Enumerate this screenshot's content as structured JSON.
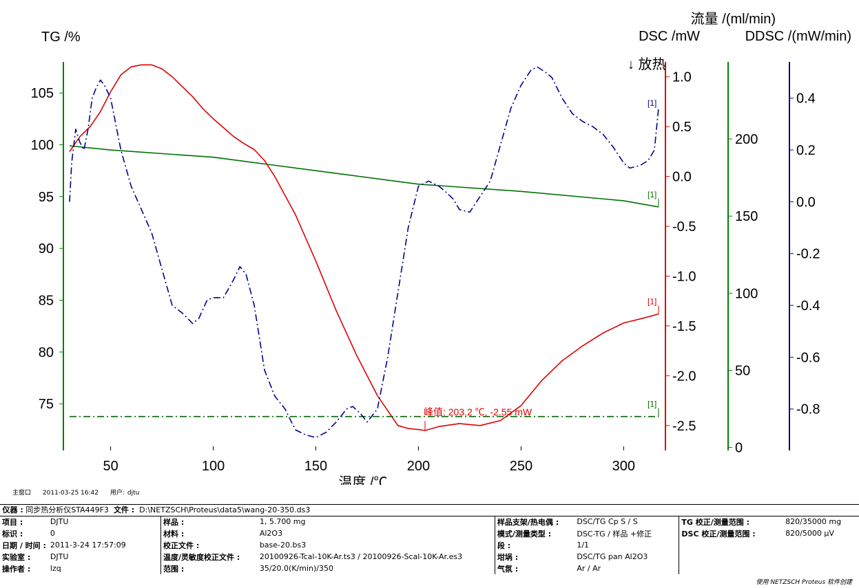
{
  "chart_data": {
    "type": "line",
    "title": "",
    "xlabel": "温度 /℃",
    "xlim": [
      30,
      317
    ],
    "x_ticks": [
      "50",
      "100",
      "150",
      "200",
      "250",
      "300"
    ],
    "axes": [
      {
        "id": "tg",
        "label": "TG /%",
        "color": "#000000",
        "lim": [
          70.5,
          108
        ],
        "ticks": [
          "105",
          "100",
          "95",
          "90",
          "85",
          "80",
          "75"
        ]
      },
      {
        "id": "dsc",
        "label": "DSC /mW",
        "color": "#cc0000",
        "lim": [
          -2.75,
          1.15
        ],
        "ticks": [
          "1.0",
          "0.5",
          "0.0",
          "-0.5",
          "-1.0",
          "-1.5",
          "-2.0",
          "-2.5"
        ],
        "exo_label": "↓ 放热"
      },
      {
        "id": "flow",
        "label": "流量 /(ml/min)",
        "color": "#008000",
        "lim": [
          -2,
          250
        ],
        "ticks": [
          "200",
          "150",
          "100",
          "50",
          "0"
        ]
      },
      {
        "id": "ddsc",
        "label": "DDSC /(mW/min)",
        "color": "#000080",
        "lim": [
          -0.96,
          0.54
        ],
        "ticks": [
          "0.4",
          "0.2",
          "0.0",
          "-0.2",
          "-0.4",
          "-0.6",
          "-0.8"
        ]
      }
    ],
    "series": [
      {
        "axis": "tg",
        "color": "#007000",
        "style": "solid",
        "end_label": "[1]",
        "x": [
          30,
          50,
          100,
          150,
          200,
          250,
          300,
          317
        ],
        "y": [
          99.9,
          99.5,
          98.8,
          97.5,
          96.2,
          95.5,
          94.6,
          94.0
        ]
      },
      {
        "axis": "dsc",
        "color": "#dd0000",
        "style": "solid",
        "end_label": "[1]",
        "x": [
          30,
          31,
          35,
          40,
          45,
          50,
          55,
          60,
          65,
          70,
          75,
          80,
          85,
          90,
          95,
          100,
          105,
          110,
          115,
          120,
          125,
          130,
          140,
          150,
          160,
          170,
          180,
          190,
          195,
          200,
          203.2,
          210,
          220,
          230,
          240,
          250,
          260,
          270,
          280,
          290,
          300,
          310,
          317
        ],
        "y": [
          0.25,
          0.28,
          0.4,
          0.5,
          0.65,
          0.85,
          1.02,
          1.1,
          1.12,
          1.12,
          1.08,
          1.0,
          0.9,
          0.8,
          0.68,
          0.58,
          0.49,
          0.4,
          0.33,
          0.27,
          0.16,
          0.0,
          -0.38,
          -0.85,
          -1.35,
          -1.8,
          -2.2,
          -2.5,
          -2.53,
          -2.54,
          -2.55,
          -2.51,
          -2.48,
          -2.5,
          -2.45,
          -2.3,
          -2.05,
          -1.85,
          -1.7,
          -1.57,
          -1.47,
          -1.42,
          -1.38
        ]
      },
      {
        "axis": "flow",
        "color": "#006400",
        "style": "dashdot",
        "end_label": "[1]",
        "x": [
          30,
          317
        ],
        "y": [
          20,
          20
        ]
      },
      {
        "axis": "ddsc",
        "color": "#00008b",
        "style": "dashdot",
        "x": [
          30,
          31,
          33,
          35,
          37,
          39,
          41,
          43,
          45,
          47,
          50,
          55,
          60,
          70,
          80,
          85,
          90,
          93,
          97,
          100,
          105,
          110,
          113,
          116,
          120,
          125,
          130,
          135,
          140,
          145,
          150,
          155,
          160,
          165,
          168,
          172,
          175,
          180,
          185,
          190,
          195,
          200,
          205,
          210,
          213,
          217,
          220,
          225,
          230,
          235,
          240,
          245,
          250,
          255,
          258,
          262,
          265,
          270,
          275,
          280,
          285,
          290,
          295,
          300,
          303,
          308,
          312,
          315,
          317
        ],
        "y": [
          0.0,
          0.15,
          0.28,
          0.23,
          0.2,
          0.28,
          0.4,
          0.44,
          0.47,
          0.45,
          0.4,
          0.2,
          0.06,
          -0.12,
          -0.4,
          -0.43,
          -0.47,
          -0.45,
          -0.38,
          -0.37,
          -0.37,
          -0.3,
          -0.25,
          -0.28,
          -0.4,
          -0.65,
          -0.75,
          -0.8,
          -0.88,
          -0.9,
          -0.91,
          -0.89,
          -0.85,
          -0.8,
          -0.79,
          -0.82,
          -0.85,
          -0.8,
          -0.6,
          -0.35,
          -0.1,
          0.06,
          0.08,
          0.06,
          0.04,
          0.01,
          -0.03,
          -0.04,
          0.02,
          0.08,
          0.22,
          0.36,
          0.45,
          0.51,
          0.52,
          0.5,
          0.48,
          0.4,
          0.34,
          0.31,
          0.29,
          0.26,
          0.21,
          0.15,
          0.13,
          0.14,
          0.16,
          0.2,
          0.36
        ]
      }
    ],
    "annotations": [
      {
        "text": "峰值: 203.2 ℃, -2.55 mW",
        "x": 203.2,
        "y": -2.55,
        "axis": "dsc",
        "color": "#dd0000"
      }
    ]
  },
  "window": {
    "label": "主窗口",
    "datetime": "2011-03-25 16:42",
    "user_label": "用户:",
    "user": "djtu"
  },
  "instrument": {
    "label": "仪器 :",
    "value": "同步热分析仪STA449F3",
    "file_label": "文件 :",
    "file": "D:\\NETZSCH\\Proteus\\data5\\wang-20-350.ds3"
  },
  "info": {
    "col1": [
      [
        "项目 :",
        "DJTU"
      ],
      [
        "标识 :",
        "0"
      ],
      [
        "日期 / 时间 :",
        "2011-3-24 17:57:09"
      ],
      [
        "实验室 :",
        "DJTU"
      ],
      [
        "操作者 :",
        "lzq"
      ]
    ],
    "col2": [
      [
        "样品 :",
        "1, 5.700 mg"
      ],
      [
        "材料 :",
        "Al2O3"
      ],
      [
        "校正文件 :",
        "base-20.bs3"
      ],
      [
        "温度/灵敏度校正文件 :",
        "20100926-Tcal-10K-Ar.ts3 / 20100926-Scal-10K-Ar.es3"
      ],
      [
        "范围 :",
        "35/20.0(K/min)/350"
      ]
    ],
    "col3": [
      [
        "样品支架/热电偶 :",
        "DSC/TG Cp S / S"
      ],
      [
        "模式/测量类型 :",
        "DSC-TG / 样品 +修正"
      ],
      [
        "段 :",
        "1/1"
      ],
      [
        "坩埚 :",
        "DSC/TG pan Al2O3"
      ],
      [
        "气氛 :",
        "Ar / Ar"
      ]
    ],
    "col4": [
      [
        "TG 校正/测量范围 :",
        "820/35000 mg"
      ],
      [
        "DSC 校正/测量范围 :",
        "820/5000 μV"
      ],
      [
        "",
        ""
      ],
      [
        "",
        ""
      ],
      [
        "",
        ""
      ]
    ]
  },
  "credit": "使用 NETZSCH Proteus 软件创建"
}
